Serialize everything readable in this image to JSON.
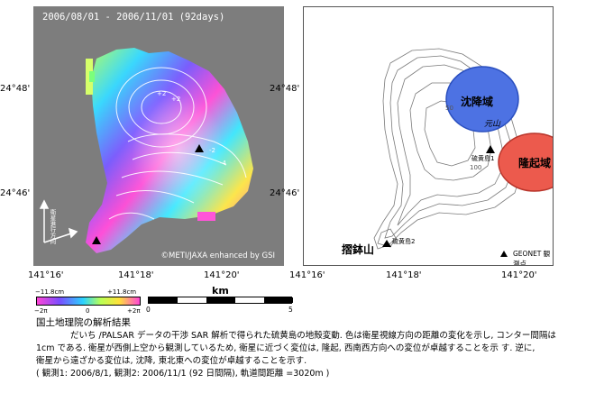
{
  "left_panel": {
    "date_range": "2006/08/01 - 2006/11/01 (92days)",
    "copyright": "©METI/JAXA enhanced by GSI",
    "track_label": "衛星進行方向",
    "contour_labels": [
      "+2",
      "+2",
      "0",
      "-2",
      "-4",
      "0",
      "-2",
      "-2"
    ]
  },
  "right_panel": {
    "subsidence_label": "沈降域",
    "uplift_label": "隆起域",
    "genzan_label": "元山",
    "suribachi_label": "摺鉢山",
    "station1_label": "硫黄島1",
    "station2_label": "硫黄島2",
    "contour_labels": [
      "50",
      "50",
      "50",
      "100",
      "100",
      "100"
    ],
    "gnss_legend": "GEONET 観測点",
    "subsidence_color": "#4d72e3",
    "uplift_color": "#ec5a4d"
  },
  "axes": {
    "lat_top": "24°48'",
    "lat_bottom": "24°46'",
    "lon_labels": [
      "141°16'",
      "141°18'",
      "141°20'"
    ]
  },
  "colorbar": {
    "min_cm": "−11.8cm",
    "max_cm": "+11.8cm",
    "min_phase": "−2π",
    "mid_phase": "0",
    "max_phase": "+2π"
  },
  "scale": {
    "unit": "km",
    "start": "0",
    "end": "5"
  },
  "caption": {
    "heading": "国土地理院の解析結果",
    "line1": "だいち /PALSAR データの干渉 SAR 解析で得られた硫黄島の地殻変動. 色は衛星視線方向の距離の変化を示し, コンター間隔は",
    "line2": "1cm である. 衛星が西側上空から観測しているため, 衛星に近づく変位は, 隆起, 西南西方向への変位が卓越することを示 す. 逆に,",
    "line3": "衛星から遠ざかる変位は, 沈降, 東北東への変位が卓越することを示す.",
    "line4": "( 観測1: 2006/8/1, 観測2: 2006/11/1 (92 日間隔), 軌道間距離 =3020m )"
  }
}
